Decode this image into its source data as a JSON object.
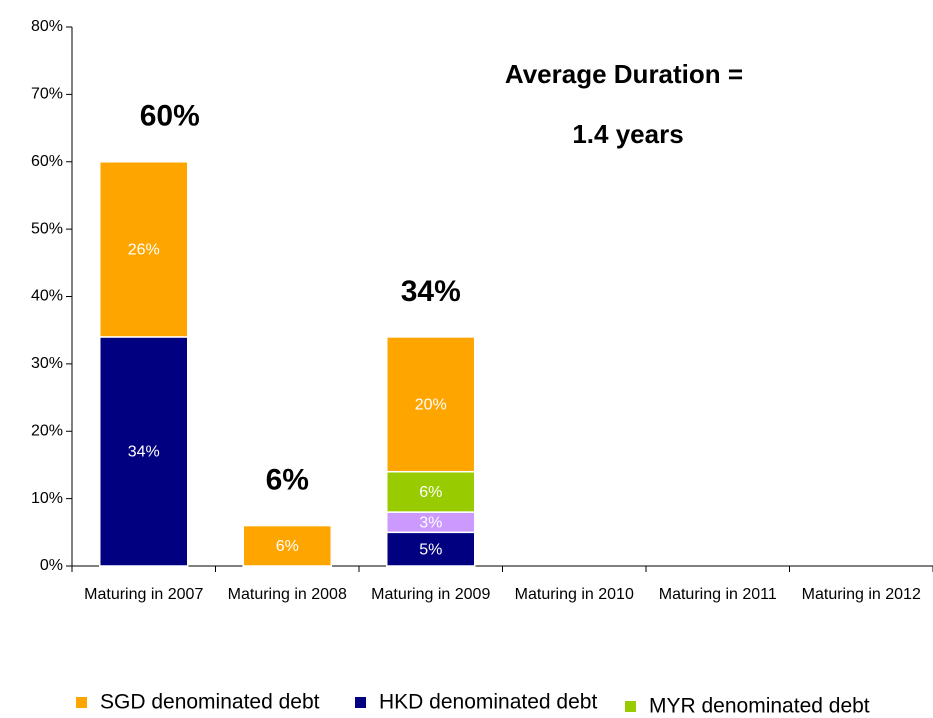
{
  "chart_data": {
    "type": "stacked_bar",
    "categories": [
      "Maturing in 2007",
      "Maturing in 2008",
      "Maturing in 2009",
      "Maturing in 2010",
      "Maturing in 2011",
      "Maturing in 2012"
    ],
    "series": [
      {
        "name": "SGD denominated debt",
        "color": "#FFA500",
        "values": [
          26,
          6,
          20,
          null,
          null,
          null
        ],
        "value_labels": [
          "26%",
          "6%",
          "20%",
          null,
          null,
          null
        ]
      },
      {
        "name": "HKD denominated debt",
        "color": "#000080",
        "values": [
          34,
          null,
          5,
          null,
          null,
          null
        ],
        "value_labels": [
          "34%",
          null,
          "5%",
          null,
          null,
          null
        ]
      },
      {
        "name": "MYR denominated debt",
        "color": "#99CC00",
        "values": [
          null,
          null,
          6,
          null,
          null,
          null
        ],
        "value_labels": [
          null,
          null,
          "6%",
          null,
          null,
          null
        ]
      },
      {
        "color": "#CC99FF",
        "values": [
          null,
          null,
          3,
          null,
          null,
          null
        ],
        "value_labels": [
          null,
          null,
          "3%",
          null,
          null,
          null
        ]
      }
    ],
    "totals": [
      60,
      6,
      34,
      null,
      null,
      null
    ],
    "total_labels": [
      "60%",
      "6%",
      "34%",
      null,
      null,
      null
    ],
    "annotations": [
      "Average Duration =",
      "1.4 years"
    ],
    "ylim": [
      0,
      80
    ],
    "yticks": [
      {
        "value": 0,
        "label": "0%"
      },
      {
        "value": 10,
        "label": "10%"
      },
      {
        "value": 20,
        "label": "20%"
      },
      {
        "value": 30,
        "label": "30%"
      },
      {
        "value": 40,
        "label": "40%"
      },
      {
        "value": 50,
        "label": "50%"
      },
      {
        "value": 60,
        "label": "60%"
      },
      {
        "value": 70,
        "label": "70%"
      },
      {
        "value": 80,
        "label": "80%"
      }
    ],
    "legend": "bottom"
  }
}
